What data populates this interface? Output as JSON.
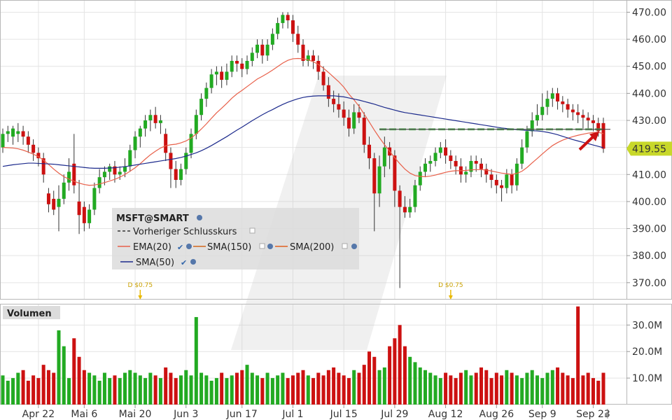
{
  "chart_data": {
    "type": "candlestick",
    "symbol_label": "MSFT@SMART",
    "y_ticks": [
      "470.00",
      "460.00",
      "450.00",
      "440.00",
      "430.00",
      "420.00",
      "410.00",
      "400.00",
      "390.00",
      "380.00",
      "370.00"
    ],
    "y_tick_values": [
      470,
      460,
      450,
      440,
      430,
      420,
      410,
      400,
      390,
      380,
      370
    ],
    "ylim": [
      364,
      474
    ],
    "last_price": 419.55,
    "last_price_label": "419.55",
    "previous_close": 426.7,
    "x_ticks": [
      "Apr 22",
      "Mai 6",
      "Mai 20",
      "Jun 3",
      "Jun 17",
      "Jul 1",
      "Jul 15",
      "Jul 29",
      "Aug 12",
      "Aug 26",
      "Sep 9",
      "Sep 23"
    ],
    "x_tick_candle_index": [
      7,
      16,
      26,
      36,
      47,
      57,
      67,
      77,
      87,
      97,
      106,
      116
    ],
    "dividends": [
      {
        "label": "D $0.75",
        "candle_index": 27
      },
      {
        "label": "D $0.75",
        "candle_index": 88
      }
    ],
    "legend": [
      {
        "name": "Vorheriger Schlusskurs",
        "color": "#333333",
        "dash": true
      },
      {
        "name": "EMA(20)",
        "color": "#e8604a"
      },
      {
        "name": "SMA(150)",
        "color": "#d2691e"
      },
      {
        "name": "SMA(200)",
        "color": "#e06020"
      },
      {
        "name": "SMA(50)",
        "color": "#1c2a8c"
      }
    ],
    "volume_panel_title": "Volumen",
    "volume_ticks": [
      "30.0M",
      "20.0M",
      "10.0M"
    ],
    "volume_tick_values": [
      30,
      20,
      10
    ],
    "volume_ylim": [
      0,
      38
    ],
    "volume_unit": "M",
    "up_color": "#22aa22",
    "down_color": "#cc1111",
    "close": [
      425,
      426,
      427,
      426,
      424,
      421,
      418,
      416,
      410,
      399,
      397,
      401,
      407,
      411,
      406,
      395,
      392,
      397,
      405,
      409,
      411,
      413,
      410,
      411,
      413,
      419,
      424,
      427,
      430,
      432,
      429,
      430,
      418,
      412,
      408,
      412,
      418,
      425,
      432,
      438,
      442,
      447,
      448,
      445,
      448,
      452,
      451,
      449,
      452,
      455,
      458,
      454,
      458,
      462,
      466,
      469,
      467,
      462,
      458,
      452,
      454,
      452,
      448,
      443,
      438,
      436,
      434,
      431,
      427,
      433,
      431,
      421,
      416,
      403,
      413,
      420,
      417,
      404,
      398,
      396,
      398,
      406,
      411,
      414,
      415,
      418,
      420,
      417,
      415,
      413,
      410,
      411,
      415,
      414,
      412,
      410,
      408,
      406,
      405,
      410,
      406,
      414,
      420,
      426,
      430,
      432,
      435,
      438,
      440,
      437,
      436,
      434,
      433,
      432,
      431,
      430,
      429,
      426,
      419.55
    ],
    "ema20": [
      420,
      419.9,
      419.8,
      419.5,
      419,
      418.3,
      417.5,
      416.6,
      415.3,
      413.7,
      412,
      410.5,
      409.2,
      408.3,
      407.5,
      406.8,
      406.3,
      406,
      406.1,
      406.5,
      407,
      407.6,
      408.2,
      409,
      410,
      411.2,
      412.5,
      414,
      415.7,
      417.3,
      418.6,
      419.8,
      420.6,
      421,
      421.2,
      421.7,
      422.4,
      423.5,
      425,
      426.8,
      428.7,
      430.8,
      432.8,
      434.5,
      436.3,
      438.2,
      439.8,
      441.1,
      442.5,
      443.9,
      445.3,
      446.3,
      447.4,
      448.6,
      449.9,
      451.2,
      452.2,
      452.8,
      452.9,
      452.8,
      452.4,
      451.7,
      450.7,
      449.3,
      447.7,
      446,
      444.3,
      442.3,
      439.7,
      437.6,
      435.2,
      432.3,
      429.4,
      426.4,
      423.6,
      421,
      418.6,
      416.2,
      414,
      412,
      410.5,
      409.6,
      409.3,
      409.2,
      409.4,
      409.8,
      410.3,
      410.8,
      411.2,
      411.4,
      411.4,
      411.5,
      411.7,
      411.8,
      411.8,
      411.6,
      411.3,
      410.9,
      410.5,
      410.3,
      410,
      410.4,
      411.2,
      412.6,
      414.3,
      415.9,
      417.6,
      419.2,
      420.7,
      421.8,
      422.7,
      423.4,
      424,
      424.5,
      424.9,
      425.3,
      425.5,
      425.6,
      425.1
    ],
    "sma50": [
      413,
      413.3,
      413.6,
      413.8,
      414,
      414.2,
      414.2,
      414.1,
      414,
      413.9,
      413.8,
      413.6,
      413.4,
      413.2,
      413,
      412.8,
      412.6,
      412.4,
      412.3,
      412.3,
      412.3,
      412.4,
      412.5,
      412.7,
      412.9,
      413.2,
      413.5,
      413.8,
      414.1,
      414.4,
      414.7,
      415,
      415.3,
      415.6,
      415.9,
      416.3,
      416.8,
      417.4,
      418,
      418.8,
      419.7,
      420.7,
      421.8,
      422.9,
      424,
      425.2,
      426.4,
      427.5,
      428.7,
      429.9,
      431,
      432.1,
      433.1,
      434,
      435,
      435.9,
      436.7,
      437.4,
      438,
      438.5,
      438.8,
      439,
      439.1,
      439.1,
      439.1,
      439.1,
      438.9,
      438.7,
      438.3,
      437.9,
      437.5,
      437,
      436.5,
      436,
      435.4,
      434.8,
      434.3,
      433.8,
      433.3,
      432.9,
      432.6,
      432.3,
      432,
      431.7,
      431.4,
      431.1,
      430.8,
      430.5,
      430.2,
      429.9,
      429.6,
      429.3,
      429,
      428.7,
      428.4,
      428.1,
      427.8,
      427.5,
      427.2,
      427,
      426.8,
      426.6,
      426.4,
      426.3,
      426.2,
      426.1,
      425.9,
      425.6,
      425.2,
      424.7,
      424.1,
      423.5,
      422.9,
      422.4,
      421.9,
      421.4,
      420.9,
      420.4,
      419.9
    ],
    "candles": [
      {
        "o": 420,
        "h": 427,
        "l": 418,
        "c": 425
      },
      {
        "o": 425,
        "h": 428,
        "l": 422,
        "c": 426
      },
      {
        "o": 424,
        "h": 428,
        "l": 421,
        "c": 427
      },
      {
        "o": 425,
        "h": 429,
        "l": 422,
        "c": 426
      },
      {
        "o": 426,
        "h": 428,
        "l": 421,
        "c": 424
      },
      {
        "o": 424,
        "h": 426,
        "l": 418,
        "c": 421
      },
      {
        "o": 421,
        "h": 423,
        "l": 415,
        "c": 418
      },
      {
        "o": 418,
        "h": 420,
        "l": 413,
        "c": 416
      },
      {
        "o": 416,
        "h": 418,
        "l": 407,
        "c": 410
      },
      {
        "o": 403,
        "h": 405,
        "l": 396,
        "c": 399
      },
      {
        "o": 401,
        "h": 404,
        "l": 395,
        "c": 397
      },
      {
        "o": 398,
        "h": 406,
        "l": 389,
        "c": 401
      },
      {
        "o": 401,
        "h": 410,
        "l": 399,
        "c": 407
      },
      {
        "o": 407,
        "h": 416,
        "l": 404,
        "c": 411
      },
      {
        "o": 414,
        "h": 425,
        "l": 403,
        "c": 406
      },
      {
        "o": 400,
        "h": 408,
        "l": 388,
        "c": 395
      },
      {
        "o": 398,
        "h": 400,
        "l": 389,
        "c": 392
      },
      {
        "o": 392,
        "h": 399,
        "l": 390,
        "c": 397
      },
      {
        "o": 397,
        "h": 407,
        "l": 395,
        "c": 405
      },
      {
        "o": 405,
        "h": 412,
        "l": 403,
        "c": 409
      },
      {
        "o": 409,
        "h": 413,
        "l": 406,
        "c": 411
      },
      {
        "o": 411,
        "h": 414,
        "l": 408,
        "c": 413
      },
      {
        "o": 413,
        "h": 415,
        "l": 407,
        "c": 410
      },
      {
        "o": 410,
        "h": 413,
        "l": 408,
        "c": 411
      },
      {
        "o": 411,
        "h": 416,
        "l": 409,
        "c": 413
      },
      {
        "o": 413,
        "h": 421,
        "l": 411,
        "c": 419
      },
      {
        "o": 419,
        "h": 426,
        "l": 416,
        "c": 424
      },
      {
        "o": 424,
        "h": 428,
        "l": 420,
        "c": 427
      },
      {
        "o": 427,
        "h": 432,
        "l": 424,
        "c": 430
      },
      {
        "o": 430,
        "h": 434,
        "l": 426,
        "c": 432
      },
      {
        "o": 432,
        "h": 435,
        "l": 427,
        "c": 429
      },
      {
        "o": 429,
        "h": 432,
        "l": 425,
        "c": 430
      },
      {
        "o": 425,
        "h": 427,
        "l": 415,
        "c": 418
      },
      {
        "o": 418,
        "h": 420,
        "l": 405,
        "c": 412
      },
      {
        "o": 412,
        "h": 415,
        "l": 405,
        "c": 408
      },
      {
        "o": 408,
        "h": 414,
        "l": 406,
        "c": 412
      },
      {
        "o": 412,
        "h": 420,
        "l": 410,
        "c": 418
      },
      {
        "o": 418,
        "h": 427,
        "l": 416,
        "c": 425
      },
      {
        "o": 425,
        "h": 434,
        "l": 423,
        "c": 432
      },
      {
        "o": 432,
        "h": 440,
        "l": 430,
        "c": 438
      },
      {
        "o": 438,
        "h": 444,
        "l": 435,
        "c": 442
      },
      {
        "o": 442,
        "h": 449,
        "l": 440,
        "c": 447
      },
      {
        "o": 447,
        "h": 450,
        "l": 443,
        "c": 448
      },
      {
        "o": 448,
        "h": 450,
        "l": 442,
        "c": 445
      },
      {
        "o": 445,
        "h": 451,
        "l": 443,
        "c": 448
      },
      {
        "o": 448,
        "h": 454,
        "l": 446,
        "c": 452
      },
      {
        "o": 452,
        "h": 454,
        "l": 448,
        "c": 451
      },
      {
        "o": 451,
        "h": 453,
        "l": 446,
        "c": 449
      },
      {
        "o": 449,
        "h": 454,
        "l": 447,
        "c": 452
      },
      {
        "o": 452,
        "h": 457,
        "l": 450,
        "c": 455
      },
      {
        "o": 455,
        "h": 460,
        "l": 453,
        "c": 458
      },
      {
        "o": 458,
        "h": 460,
        "l": 451,
        "c": 454
      },
      {
        "o": 454,
        "h": 460,
        "l": 452,
        "c": 458
      },
      {
        "o": 458,
        "h": 464,
        "l": 456,
        "c": 462
      },
      {
        "o": 462,
        "h": 468,
        "l": 460,
        "c": 466
      },
      {
        "o": 466,
        "h": 470,
        "l": 464,
        "c": 469
      },
      {
        "o": 469,
        "h": 470,
        "l": 464,
        "c": 467
      },
      {
        "o": 467,
        "h": 469,
        "l": 459,
        "c": 462
      },
      {
        "o": 462,
        "h": 465,
        "l": 455,
        "c": 458
      },
      {
        "o": 458,
        "h": 460,
        "l": 450,
        "c": 452
      },
      {
        "o": 452,
        "h": 456,
        "l": 450,
        "c": 454
      },
      {
        "o": 454,
        "h": 456,
        "l": 449,
        "c": 452
      },
      {
        "o": 452,
        "h": 454,
        "l": 445,
        "c": 448
      },
      {
        "o": 448,
        "h": 450,
        "l": 441,
        "c": 443
      },
      {
        "o": 443,
        "h": 446,
        "l": 435,
        "c": 438
      },
      {
        "o": 438,
        "h": 441,
        "l": 433,
        "c": 436
      },
      {
        "o": 436,
        "h": 440,
        "l": 431,
        "c": 434
      },
      {
        "o": 434,
        "h": 437,
        "l": 428,
        "c": 431
      },
      {
        "o": 431,
        "h": 434,
        "l": 424,
        "c": 427
      },
      {
        "o": 427,
        "h": 436,
        "l": 425,
        "c": 433
      },
      {
        "o": 433,
        "h": 436,
        "l": 429,
        "c": 431
      },
      {
        "o": 431,
        "h": 433,
        "l": 418,
        "c": 421
      },
      {
        "o": 421,
        "h": 424,
        "l": 412,
        "c": 416
      },
      {
        "o": 416,
        "h": 418,
        "l": 389,
        "c": 403
      },
      {
        "o": 403,
        "h": 417,
        "l": 398,
        "c": 413
      },
      {
        "o": 413,
        "h": 424,
        "l": 409,
        "c": 420
      },
      {
        "o": 420,
        "h": 422,
        "l": 412,
        "c": 417
      },
      {
        "o": 417,
        "h": 419,
        "l": 398,
        "c": 404
      },
      {
        "o": 404,
        "h": 406,
        "l": 368,
        "c": 398
      },
      {
        "o": 398,
        "h": 402,
        "l": 394,
        "c": 396
      },
      {
        "o": 396,
        "h": 401,
        "l": 394,
        "c": 398
      },
      {
        "o": 398,
        "h": 408,
        "l": 396,
        "c": 406
      },
      {
        "o": 406,
        "h": 413,
        "l": 404,
        "c": 411
      },
      {
        "o": 411,
        "h": 416,
        "l": 409,
        "c": 414
      },
      {
        "o": 414,
        "h": 417,
        "l": 411,
        "c": 415
      },
      {
        "o": 415,
        "h": 420,
        "l": 413,
        "c": 418
      },
      {
        "o": 418,
        "h": 422,
        "l": 416,
        "c": 420
      },
      {
        "o": 420,
        "h": 423,
        "l": 414,
        "c": 417
      },
      {
        "o": 417,
        "h": 419,
        "l": 412,
        "c": 415
      },
      {
        "o": 415,
        "h": 417,
        "l": 410,
        "c": 413
      },
      {
        "o": 413,
        "h": 416,
        "l": 407,
        "c": 410
      },
      {
        "o": 410,
        "h": 413,
        "l": 407,
        "c": 411
      },
      {
        "o": 411,
        "h": 417,
        "l": 409,
        "c": 415
      },
      {
        "o": 415,
        "h": 417,
        "l": 411,
        "c": 414
      },
      {
        "o": 414,
        "h": 416,
        "l": 409,
        "c": 412
      },
      {
        "o": 412,
        "h": 414,
        "l": 407,
        "c": 410
      },
      {
        "o": 410,
        "h": 412,
        "l": 405,
        "c": 408
      },
      {
        "o": 408,
        "h": 410,
        "l": 403,
        "c": 406
      },
      {
        "o": 406,
        "h": 408,
        "l": 400,
        "c": 405
      },
      {
        "o": 405,
        "h": 412,
        "l": 403,
        "c": 410
      },
      {
        "o": 410,
        "h": 412,
        "l": 403,
        "c": 406
      },
      {
        "o": 406,
        "h": 416,
        "l": 404,
        "c": 414
      },
      {
        "o": 414,
        "h": 423,
        "l": 412,
        "c": 420
      },
      {
        "o": 420,
        "h": 428,
        "l": 418,
        "c": 426
      },
      {
        "o": 426,
        "h": 433,
        "l": 424,
        "c": 430
      },
      {
        "o": 430,
        "h": 436,
        "l": 428,
        "c": 432
      },
      {
        "o": 432,
        "h": 440,
        "l": 430,
        "c": 435
      },
      {
        "o": 435,
        "h": 441,
        "l": 432,
        "c": 438
      },
      {
        "o": 438,
        "h": 442,
        "l": 435,
        "c": 440
      },
      {
        "o": 440,
        "h": 442,
        "l": 434,
        "c": 437
      },
      {
        "o": 437,
        "h": 439,
        "l": 433,
        "c": 436
      },
      {
        "o": 436,
        "h": 438,
        "l": 431,
        "c": 434
      },
      {
        "o": 434,
        "h": 436,
        "l": 430,
        "c": 433
      },
      {
        "o": 433,
        "h": 436,
        "l": 429,
        "c": 432
      },
      {
        "o": 432,
        "h": 434,
        "l": 427,
        "c": 431
      },
      {
        "o": 431,
        "h": 433,
        "l": 427,
        "c": 430
      },
      {
        "o": 430,
        "h": 432,
        "l": 426,
        "c": 429
      },
      {
        "o": 429,
        "h": 431,
        "l": 424,
        "c": 426
      },
      {
        "o": 429,
        "h": 431,
        "l": 418,
        "c": 419.55
      }
    ],
    "volume": [
      11,
      9,
      10,
      12,
      13,
      9,
      11,
      10,
      15,
      13,
      12,
      28,
      22,
      10,
      25,
      18,
      13,
      12,
      11,
      9,
      12,
      10,
      11,
      10,
      12,
      13,
      12,
      11,
      10,
      12,
      11,
      10,
      14,
      12,
      10,
      11,
      13,
      11,
      33,
      12,
      11,
      9,
      10,
      12,
      10,
      11,
      12,
      13,
      15,
      12,
      11,
      10,
      12,
      10,
      11,
      12,
      10,
      11,
      12,
      13,
      11,
      10,
      12,
      11,
      13,
      14,
      12,
      11,
      10,
      13,
      12,
      15,
      20,
      18,
      13,
      14,
      22,
      25,
      30,
      22,
      18,
      16,
      14,
      13,
      12,
      11,
      10,
      12,
      11,
      10,
      12,
      13,
      11,
      12,
      14,
      13,
      10,
      12,
      11,
      13,
      12,
      11,
      10,
      12,
      13,
      11,
      10,
      12,
      13,
      14,
      12,
      11,
      10,
      37,
      11,
      12,
      10,
      9,
      12
    ]
  }
}
